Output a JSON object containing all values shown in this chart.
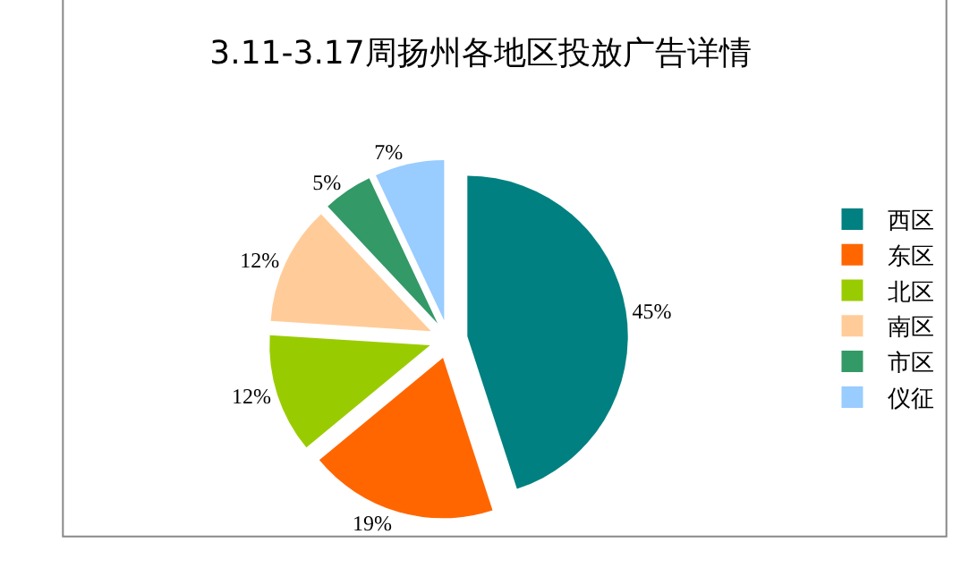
{
  "chart_data": {
    "type": "pie",
    "title": "3.11-3.17周扬州各地区投放广告详情",
    "categories": [
      "西区",
      "东区",
      "北区",
      "南区",
      "市区",
      "仪征"
    ],
    "values": [
      45,
      19,
      12,
      12,
      5,
      7
    ],
    "colors": [
      "#008080",
      "#ff6600",
      "#99cc00",
      "#ffcc99",
      "#339966",
      "#99ccff"
    ],
    "value_labels": [
      "45%",
      "19%",
      "12%",
      "12%",
      "5%",
      "7%"
    ],
    "legend": "right"
  }
}
